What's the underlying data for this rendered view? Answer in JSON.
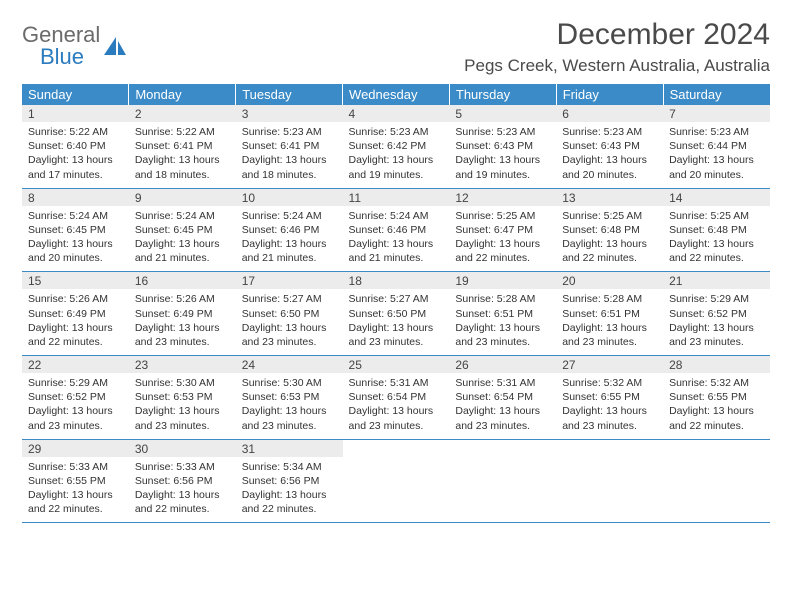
{
  "brand": {
    "part1": "General",
    "part2": "Blue"
  },
  "title": "December 2024",
  "location": "Pegs Creek, Western Australia, Australia",
  "colors": {
    "header_bg": "#3b8bc8",
    "header_text": "#ffffff",
    "daynum_bg": "#ececec",
    "rule": "#3b8bc8",
    "text": "#333333",
    "brand_gray": "#6b6b6b",
    "brand_blue": "#2b7bbf"
  },
  "weekdays": [
    "Sunday",
    "Monday",
    "Tuesday",
    "Wednesday",
    "Thursday",
    "Friday",
    "Saturday"
  ],
  "weeks": [
    [
      {
        "n": "1",
        "sr": "5:22 AM",
        "ss": "6:40 PM",
        "dl": "13 hours and 17 minutes."
      },
      {
        "n": "2",
        "sr": "5:22 AM",
        "ss": "6:41 PM",
        "dl": "13 hours and 18 minutes."
      },
      {
        "n": "3",
        "sr": "5:23 AM",
        "ss": "6:41 PM",
        "dl": "13 hours and 18 minutes."
      },
      {
        "n": "4",
        "sr": "5:23 AM",
        "ss": "6:42 PM",
        "dl": "13 hours and 19 minutes."
      },
      {
        "n": "5",
        "sr": "5:23 AM",
        "ss": "6:43 PM",
        "dl": "13 hours and 19 minutes."
      },
      {
        "n": "6",
        "sr": "5:23 AM",
        "ss": "6:43 PM",
        "dl": "13 hours and 20 minutes."
      },
      {
        "n": "7",
        "sr": "5:23 AM",
        "ss": "6:44 PM",
        "dl": "13 hours and 20 minutes."
      }
    ],
    [
      {
        "n": "8",
        "sr": "5:24 AM",
        "ss": "6:45 PM",
        "dl": "13 hours and 20 minutes."
      },
      {
        "n": "9",
        "sr": "5:24 AM",
        "ss": "6:45 PM",
        "dl": "13 hours and 21 minutes."
      },
      {
        "n": "10",
        "sr": "5:24 AM",
        "ss": "6:46 PM",
        "dl": "13 hours and 21 minutes."
      },
      {
        "n": "11",
        "sr": "5:24 AM",
        "ss": "6:46 PM",
        "dl": "13 hours and 21 minutes."
      },
      {
        "n": "12",
        "sr": "5:25 AM",
        "ss": "6:47 PM",
        "dl": "13 hours and 22 minutes."
      },
      {
        "n": "13",
        "sr": "5:25 AM",
        "ss": "6:48 PM",
        "dl": "13 hours and 22 minutes."
      },
      {
        "n": "14",
        "sr": "5:25 AM",
        "ss": "6:48 PM",
        "dl": "13 hours and 22 minutes."
      }
    ],
    [
      {
        "n": "15",
        "sr": "5:26 AM",
        "ss": "6:49 PM",
        "dl": "13 hours and 22 minutes."
      },
      {
        "n": "16",
        "sr": "5:26 AM",
        "ss": "6:49 PM",
        "dl": "13 hours and 23 minutes."
      },
      {
        "n": "17",
        "sr": "5:27 AM",
        "ss": "6:50 PM",
        "dl": "13 hours and 23 minutes."
      },
      {
        "n": "18",
        "sr": "5:27 AM",
        "ss": "6:50 PM",
        "dl": "13 hours and 23 minutes."
      },
      {
        "n": "19",
        "sr": "5:28 AM",
        "ss": "6:51 PM",
        "dl": "13 hours and 23 minutes."
      },
      {
        "n": "20",
        "sr": "5:28 AM",
        "ss": "6:51 PM",
        "dl": "13 hours and 23 minutes."
      },
      {
        "n": "21",
        "sr": "5:29 AM",
        "ss": "6:52 PM",
        "dl": "13 hours and 23 minutes."
      }
    ],
    [
      {
        "n": "22",
        "sr": "5:29 AM",
        "ss": "6:52 PM",
        "dl": "13 hours and 23 minutes."
      },
      {
        "n": "23",
        "sr": "5:30 AM",
        "ss": "6:53 PM",
        "dl": "13 hours and 23 minutes."
      },
      {
        "n": "24",
        "sr": "5:30 AM",
        "ss": "6:53 PM",
        "dl": "13 hours and 23 minutes."
      },
      {
        "n": "25",
        "sr": "5:31 AM",
        "ss": "6:54 PM",
        "dl": "13 hours and 23 minutes."
      },
      {
        "n": "26",
        "sr": "5:31 AM",
        "ss": "6:54 PM",
        "dl": "13 hours and 23 minutes."
      },
      {
        "n": "27",
        "sr": "5:32 AM",
        "ss": "6:55 PM",
        "dl": "13 hours and 23 minutes."
      },
      {
        "n": "28",
        "sr": "5:32 AM",
        "ss": "6:55 PM",
        "dl": "13 hours and 22 minutes."
      }
    ],
    [
      {
        "n": "29",
        "sr": "5:33 AM",
        "ss": "6:55 PM",
        "dl": "13 hours and 22 minutes."
      },
      {
        "n": "30",
        "sr": "5:33 AM",
        "ss": "6:56 PM",
        "dl": "13 hours and 22 minutes."
      },
      {
        "n": "31",
        "sr": "5:34 AM",
        "ss": "6:56 PM",
        "dl": "13 hours and 22 minutes."
      },
      null,
      null,
      null,
      null
    ]
  ],
  "labels": {
    "sunrise": "Sunrise:",
    "sunset": "Sunset:",
    "daylight": "Daylight:"
  }
}
